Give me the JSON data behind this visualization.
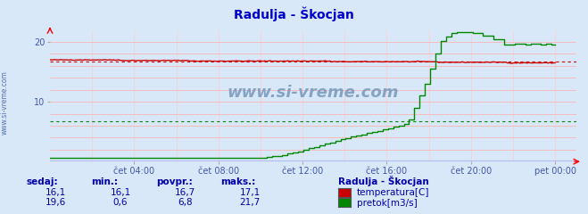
{
  "title": "Radulja - Škocjan",
  "title_color": "#0000cc",
  "bg_color": "#d8e8f8",
  "plot_bg_color": "#d8e8f8",
  "grid_color": "#ffaaaa",
  "grid_color_v": "#ffcccc",
  "xlabel_color": "#4455aa",
  "watermark": "www.si-vreme.com",
  "x_tick_labels": [
    "čet 04:00",
    "čet 08:00",
    "čet 12:00",
    "čet 16:00",
    "čet 20:00",
    "pet 00:00"
  ],
  "x_tick_positions": [
    4,
    8,
    12,
    16,
    20,
    24
  ],
  "xlim": [
    0,
    25
  ],
  "ylim": [
    0,
    22
  ],
  "yticks": [
    10,
    20
  ],
  "temp_color": "#cc0000",
  "flow_color": "#008800",
  "temp_avg": 16.7,
  "flow_avg": 6.8,
  "info_color": "#0000aa",
  "legend_title": "Radulja - Škocjan",
  "legend_entries": [
    "temperatura[C]",
    "pretok[m3/s]"
  ],
  "legend_colors": [
    "#cc0000",
    "#008800"
  ],
  "stats_labels": [
    "sedaj:",
    "min.:",
    "povpr.:",
    "maks.:"
  ],
  "stats_temp": [
    "16,1",
    "16,1",
    "16,7",
    "17,1"
  ],
  "stats_flow": [
    "19,6",
    "0,6",
    "6,8",
    "21,7"
  ]
}
